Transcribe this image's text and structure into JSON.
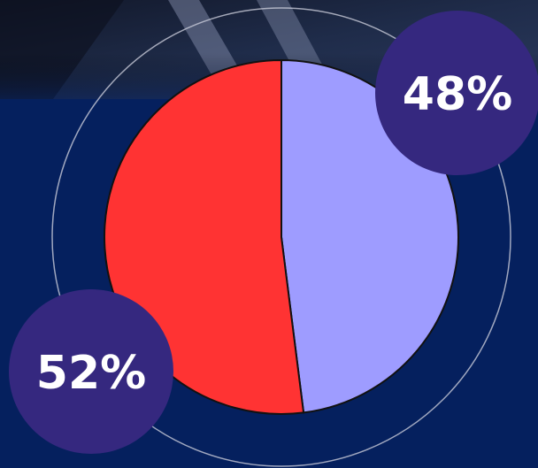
{
  "chart_data": {
    "type": "pie",
    "values": [
      48,
      52
    ],
    "value_labels": [
      "48%",
      "52%"
    ],
    "colors": [
      "#9e9cff",
      "#ff3333"
    ],
    "start_angle": 0,
    "direction": "clockwise"
  }
}
